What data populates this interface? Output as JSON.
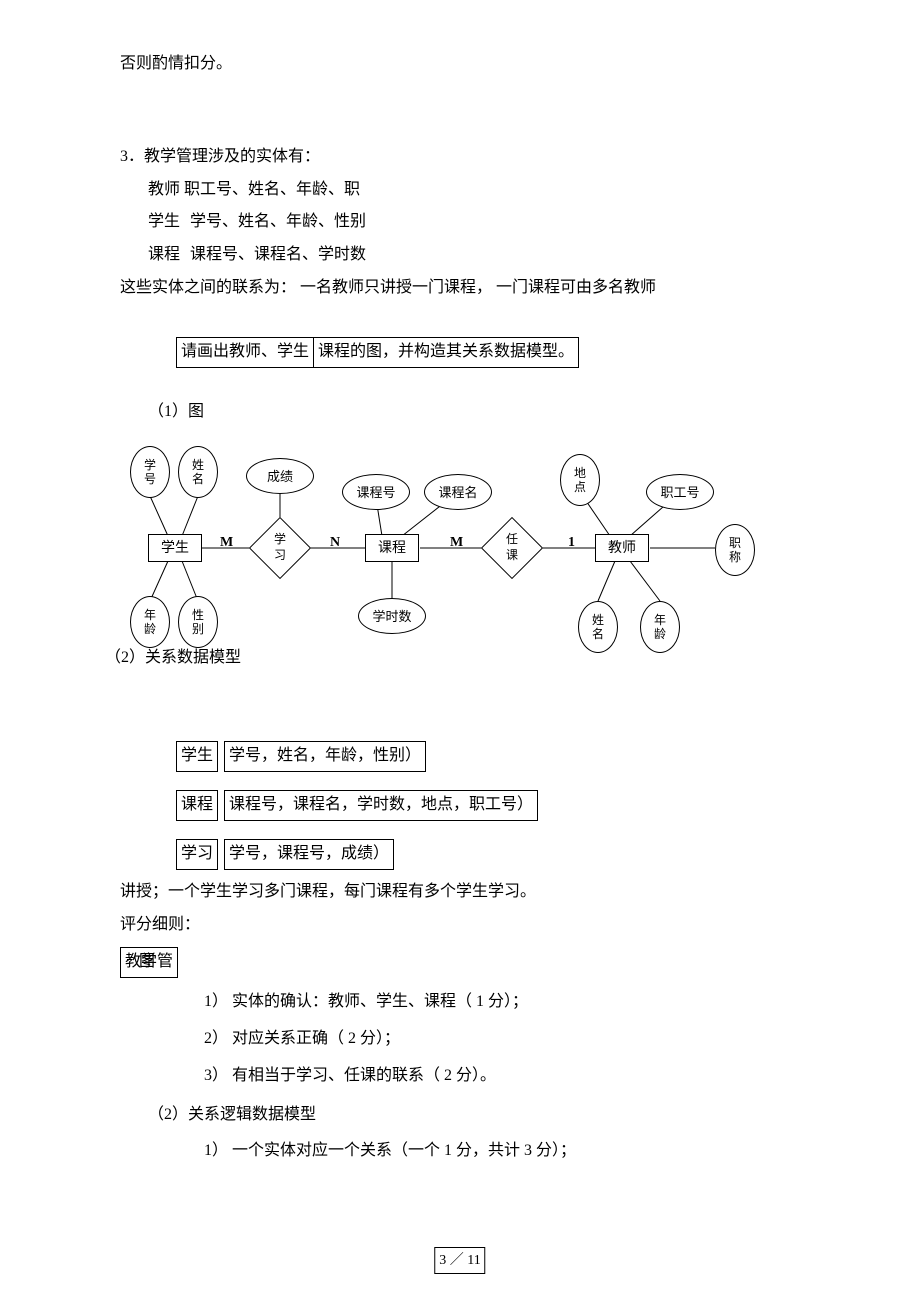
{
  "topText": "否则酌情扣分。",
  "q3": {
    "lead": "3．教学管理涉及的实体有：",
    "teacher": "教师  职工号、姓名、年龄、职",
    "student_label": "学生",
    "student_attrs": "学号、姓名、年龄、性别",
    "course_label": "课程",
    "course_attrs": "课程号、课程名、学时数",
    "rel": "这些实体之间的联系为：  一名教师只讲授一门课程，  一门课程可由多名教师",
    "question_a": "请画出教师、学生",
    "question_b": "课程的图，并构造其关系数据模型。"
  },
  "part1_label": "（1）图",
  "diagram": {
    "e_xuehao": "学\n号",
    "e_xingming": "姓\n名",
    "e_chengji": "成绩",
    "e_kechenghao": "课程号",
    "e_kechengming": "课程名",
    "e_didian": "地\n点",
    "e_zhigonghao": "职工号",
    "r_xuesheng": "学生",
    "d_xuexi": "学\n习",
    "r_kecheng": "课程",
    "d_renke": "任\n课",
    "r_jiaoshi": "教师",
    "e_zhicheng": "职\n称",
    "e_nianling1": "年\n龄",
    "e_xingbie": "性\n别",
    "e_xueshishu": "学时数",
    "e_xingming2": "姓\n名",
    "e_nianling2": "年\n龄",
    "c_m1": "M",
    "c_n": "N",
    "c_m2": "M",
    "c_1": "1"
  },
  "part2_label": "（2）关系数据模型",
  "models": {
    "m1a": "学生",
    "m1b": "学号，姓名，年龄，性别）",
    "m2a": "课程",
    "m2b": "课程号，课程名，学时数，地点，职工号）",
    "m3a": "学习",
    "m3b": "学号，课程号，成绩）"
  },
  "teach_line": "讲授；一个学生学习多门课程，每门课程有多个学生学习。",
  "scoring_label": "评分细则：",
  "jiaoxueguan": "教学管",
  "tu": "图",
  "s1": "1）  实体的确认：教师、学生、课程（ 1 分）；",
  "s2": "2）  对应关系正确（ 2 分）；",
  "s3": "3）  有相当于学习、任课的联系（ 2 分）。",
  "part2b": "（2）关系逻辑数据模型",
  "s4": "1）  一个实体对应一个关系（一个 1 分，共计 3 分）；",
  "pageNum": "3 ／ 11"
}
